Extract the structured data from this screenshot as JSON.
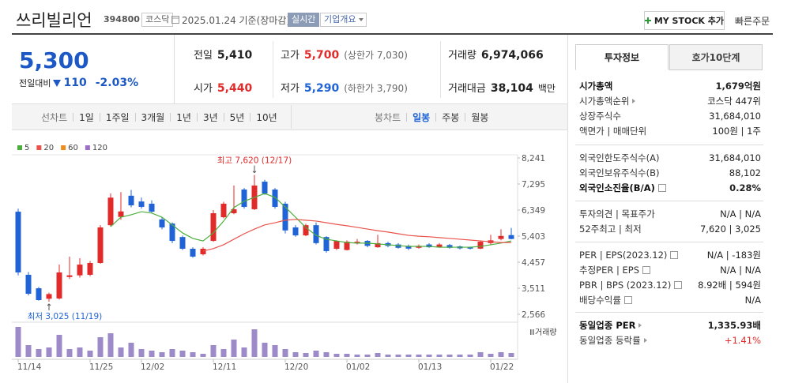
{
  "header": {
    "name": "쓰리빌리언",
    "code": "394800",
    "market": "코스닥",
    "date": "2025.01.24 기준(장마감)",
    "realtime": "실시간",
    "company": "기업개요",
    "mystock": "MY STOCK 추가",
    "quick_order": "빠른주문"
  },
  "price": {
    "current": "5,300",
    "change_label": "전일대비",
    "change": "110",
    "change_rate": "-2.03%",
    "color": "#1c58c6"
  },
  "summary": [
    [
      {
        "label": "전일",
        "value": "5,410",
        "color": "#222222"
      },
      {
        "label": "고가",
        "value": "5,700",
        "note": "(상한가 7,030)",
        "color": "#e12a2a"
      },
      {
        "label": "거래량",
        "value": "6,974,066",
        "color": "#222222"
      }
    ],
    [
      {
        "label": "시가",
        "value": "5,440",
        "color": "#e12a2a"
      },
      {
        "label": "저가",
        "value": "5,290",
        "note": "(하한가 3,790)",
        "color": "#1f63d6"
      },
      {
        "label": "거래대금",
        "value": "38,104",
        "unit": "백만",
        "color": "#222222"
      }
    ]
  ],
  "chart_tabs": {
    "line": [
      "선차트",
      "1일",
      "1주일",
      "3개월",
      "1년",
      "3년",
      "5년",
      "10년"
    ],
    "candle": [
      "봉차트",
      "일봉",
      "주봉",
      "월봉"
    ]
  },
  "chart_data": [
    {
      "type": "candlestick",
      "categories": [
        "11/14",
        null,
        null,
        null,
        null,
        null,
        null,
        "11/25",
        null,
        null,
        null,
        null,
        "12/02",
        null,
        null,
        null,
        null,
        null,
        null,
        "12/11",
        null,
        null,
        null,
        null,
        null,
        null,
        "12/20",
        null,
        null,
        null,
        null,
        null,
        "01/02",
        null,
        null,
        null,
        null,
        null,
        null,
        "01/13",
        null,
        null,
        null,
        null,
        null,
        null,
        "01/22",
        null,
        null
      ],
      "open": [
        6290,
        4000,
        3510,
        3130,
        3140,
        3920,
        3980,
        4000,
        4430,
        5800,
        6100,
        6870,
        6660,
        6580,
        6010,
        5860,
        5370,
        4945,
        4745,
        5230,
        6090,
        6235,
        7095,
        6380,
        7380,
        7095,
        6580,
        5720,
        5430,
        5800,
        5370,
        4945,
        4900,
        5150,
        5230,
        5000,
        5150,
        5100,
        5050,
        4980,
        5100,
        5000,
        5080,
        5030,
        4990,
        4950,
        5150,
        5300,
        5440
      ],
      "high": [
        6400,
        4100,
        3560,
        3350,
        4370,
        4660,
        4600,
        4500,
        5800,
        6950,
        7000,
        7080,
        6800,
        6700,
        6100,
        5900,
        5420,
        5000,
        5000,
        6350,
        6650,
        7240,
        7150,
        7620,
        7450,
        7150,
        6650,
        5800,
        5850,
        5900,
        5400,
        5250,
        5250,
        5300,
        5260,
        5450,
        5200,
        5150,
        5100,
        5100,
        5150,
        5150,
        5120,
        5060,
        5020,
        5250,
        5450,
        5650,
        5700
      ],
      "low": [
        3980,
        3250,
        3060,
        3025,
        3100,
        3850,
        3900,
        3950,
        4400,
        5750,
        6000,
        6450,
        6400,
        6250,
        5650,
        5150,
        4900,
        4620,
        4700,
        5200,
        6050,
        6200,
        6400,
        6350,
        6900,
        6400,
        5500,
        5380,
        5400,
        5100,
        4800,
        4900,
        4880,
        5100,
        5000,
        4980,
        5000,
        4950,
        4900,
        4950,
        4980,
        4980,
        4950,
        4920,
        4920,
        4930,
        5100,
        5250,
        5290
      ],
      "close": [
        4085,
        3312,
        3082,
        3300,
        4085,
        3980,
        4370,
        4430,
        5720,
        6800,
        6300,
        6520,
        6465,
        6290,
        5720,
        5230,
        4945,
        4660,
        4945,
        6235,
        6580,
        6380,
        6465,
        7240,
        6950,
        6465,
        5610,
        5430,
        5800,
        5150,
        4860,
        5230,
        5200,
        5200,
        5050,
        5150,
        5050,
        4980,
        4950,
        5050,
        5000,
        5100,
        4980,
        4960,
        4950,
        5200,
        5250,
        5410,
        5300
      ],
      "up_color": "#e12a2a",
      "down_color": "#1f63d6",
      "ylim": [
        2566,
        8241
      ],
      "yticks": [
        {
          "value": 8241,
          "label": "8,241"
        },
        {
          "value": 7295,
          "label": "7,295"
        },
        {
          "value": 6349,
          "label": "6,349"
        },
        {
          "value": 5403,
          "label": "5,403"
        },
        {
          "value": 4457,
          "label": "4,457"
        },
        {
          "value": 3511,
          "label": "3,511"
        },
        {
          "value": 2566,
          "label": "2,566"
        }
      ],
      "grid": false,
      "series": [
        {
          "name": "5",
          "color": "#4caf3c",
          "values": [
            null,
            null,
            null,
            null,
            null,
            null,
            null,
            null,
            null,
            5750,
            6090,
            6180,
            6290,
            6240,
            6090,
            5810,
            5520,
            5320,
            5230,
            5520,
            5950,
            6440,
            6670,
            6810,
            6950,
            6810,
            6460,
            6090,
            5720,
            5430,
            5290,
            5230,
            5170,
            5150,
            5150,
            5120,
            5090,
            5060,
            5030,
            5030,
            5030,
            5000,
            5000,
            5000,
            5000,
            5030,
            5090,
            5150,
            5230
          ]
        },
        {
          "name": "20",
          "color": "#e8534b",
          "values": [
            null,
            null,
            null,
            null,
            null,
            null,
            null,
            null,
            null,
            null,
            null,
            null,
            null,
            null,
            null,
            null,
            null,
            null,
            4860,
            4950,
            5090,
            5290,
            5490,
            5660,
            5810,
            5890,
            5980,
            6010,
            5980,
            5950,
            5890,
            5830,
            5780,
            5720,
            5660,
            5600,
            5550,
            5490,
            5430,
            5400,
            5380,
            5350,
            5320,
            5290,
            5260,
            5230,
            5200,
            5170,
            5170
          ]
        },
        {
          "name": "60",
          "color": "#f08c1e"
        },
        {
          "name": "120",
          "color": "#9b6fc4"
        }
      ],
      "high_label": "최고 7,620 (12/17)",
      "low_label": "최저 3,025 (11/19)"
    },
    {
      "type": "bar",
      "title": "거래량",
      "color": "#9d8ac8",
      "ylim": [
        0,
        56000000
      ],
      "values": [
        53200000,
        21000000,
        14000000,
        16800000,
        39200000,
        14000000,
        16800000,
        11200000,
        35000000,
        42000000,
        16800000,
        25200000,
        14000000,
        11200000,
        8400000,
        14000000,
        11200000,
        8400000,
        5600000,
        21000000,
        14000000,
        30800000,
        16800000,
        49000000,
        25200000,
        21000000,
        14000000,
        8400000,
        7000000,
        11200000,
        8400000,
        5600000,
        5600000,
        4200000,
        4200000,
        7000000,
        4200000,
        4200000,
        4200000,
        4200000,
        4200000,
        4200000,
        4200000,
        4200000,
        4200000,
        8400000,
        5600000,
        8400000,
        6974066
      ]
    }
  ],
  "invest_tabs": [
    "투자정보",
    "호가10단계"
  ],
  "invest_info": [
    [
      {
        "label": "시가총액",
        "value": "1,679억원",
        "bold": true
      },
      {
        "label": "시가총액순위",
        "icon": "arrow",
        "value": "코스닥 447위"
      },
      {
        "label": "상장주식수",
        "value": "31,684,010"
      },
      {
        "label": "액면가 | 매매단위",
        "value": "100원 | 1주"
      }
    ],
    [
      {
        "label": "외국인한도주식수(A)",
        "value": "31,684,010"
      },
      {
        "label": "외국인보유주식수(B)",
        "value": "88,102"
      },
      {
        "label": "외국인소진율(B/A)",
        "icon": "help",
        "value": "0.28%",
        "bold": true
      }
    ],
    [
      {
        "label": "투자의견 | 목표주가",
        "value": "N/A | N/A"
      },
      {
        "label": "52주최고 | 최저",
        "value": "7,620 | 3,025"
      }
    ],
    [
      {
        "label": "PER | EPS(2023.12)",
        "icon": "help",
        "value": "N/A | -183원"
      },
      {
        "label": "추정PER | EPS",
        "icon": "help",
        "value": "N/A | N/A"
      },
      {
        "label": "PBR | BPS (2023.12)",
        "icon": "help",
        "value": "8.92배 | 594원"
      },
      {
        "label": "배당수익률",
        "icon": "help",
        "value": "N/A"
      }
    ],
    [
      {
        "label": "동일업종 PER",
        "icon": "arrow",
        "value": "1,335.93배",
        "bold": true
      },
      {
        "label": "동일업종 등락률",
        "icon": "arrow",
        "value": "+1.41%",
        "color": "#e12a2a"
      }
    ]
  ]
}
